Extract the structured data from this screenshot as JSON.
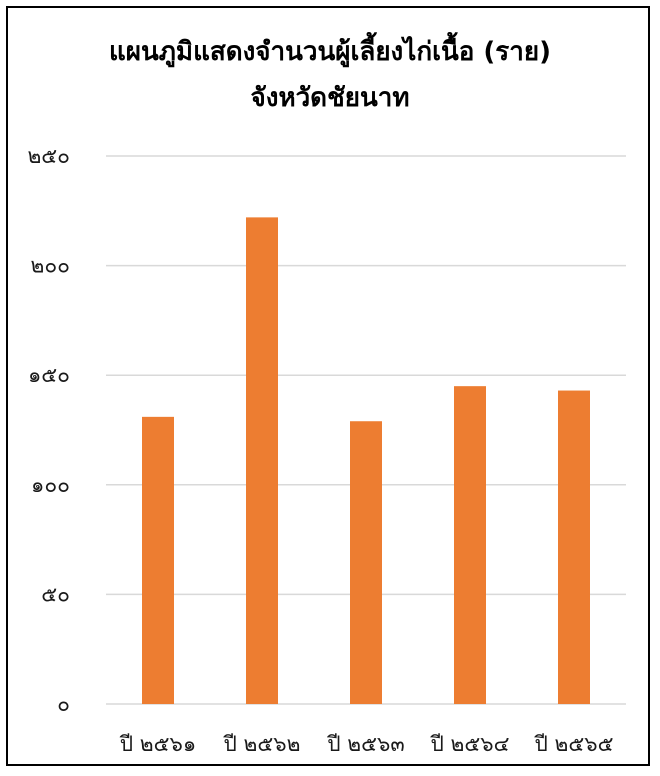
{
  "chart_data": {
    "type": "bar",
    "title_lines": [
      "แผนภูมิแสดงจำนวนผู้เลี้ยงไก่เนื้อ (ราย)",
      "จังหวัดชัยนาท"
    ],
    "categories": [
      "ปี ๒๕๖๑",
      "ปี ๒๕๖๒",
      "ปี ๒๕๖๓",
      "ปี ๒๕๖๔",
      "ปี ๒๕๖๕"
    ],
    "values": [
      131,
      222,
      129,
      145,
      143
    ],
    "ylim": [
      0,
      250
    ],
    "yticks": [
      0,
      50,
      100,
      150,
      200,
      250
    ],
    "ytick_labels": [
      "๐",
      "๕๐",
      "๑๐๐",
      "๑๕๐",
      "๒๐๐",
      "๒๕๐"
    ],
    "bar_color": "#ED7D31",
    "grid": true,
    "grid_color": "#D9D9D9",
    "xlabel": "",
    "ylabel": ""
  }
}
